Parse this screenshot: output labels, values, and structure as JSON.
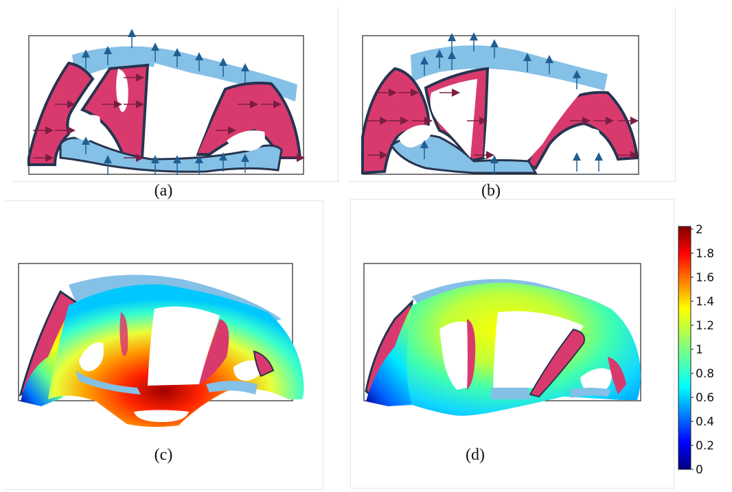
{
  "figure": {
    "captions": {
      "a": "(a)",
      "b": "(b)",
      "c": "(c)",
      "d": "(d)"
    }
  },
  "colors": {
    "material_pink": "#d93a6e",
    "material_blue": "#85c0e6",
    "interface_dark": "#263450",
    "arrow_blue": "#1f5f93",
    "arrow_red": "#7a1d43"
  },
  "colorbar": {
    "min": 0,
    "max": 2,
    "colormap": "jet",
    "tick_labels": [
      "2",
      "1.8",
      "1.6",
      "1.4",
      "1.2",
      "1",
      "0.8",
      "0.6",
      "0.4",
      "0.2",
      "0"
    ]
  }
}
